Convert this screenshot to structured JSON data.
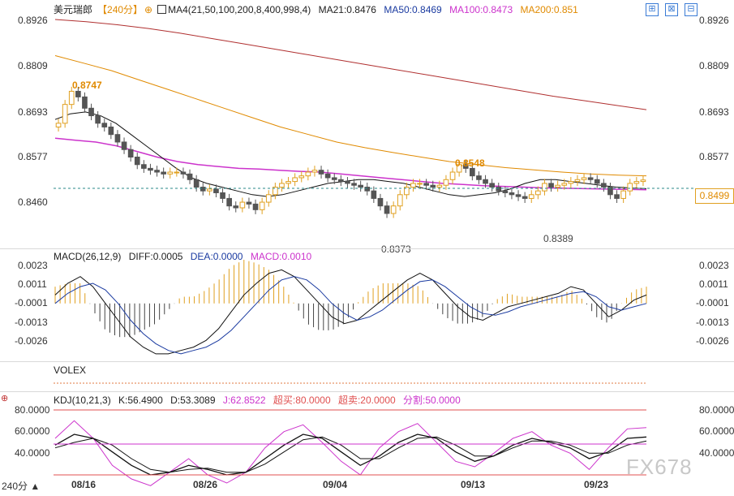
{
  "header": {
    "symbol": "美元瑞郎",
    "timeframe_tag": "【240分】",
    "ma_params": "MA4(21,50,100,200,8,400,998,4)",
    "ma21": "MA21:0.8476",
    "ma50": "MA50:0.8469",
    "ma100": "MA100:0.8473",
    "ma200": "MA200:0.851"
  },
  "window_buttons": [
    "⊞",
    "⊠",
    "⊟"
  ],
  "price_axis": [
    "0.8926",
    "0.8809",
    "0.8693",
    "0.8577",
    "0.8460"
  ],
  "price_axis_right": [
    "0.8926",
    "0.8809",
    "0.8693",
    "0.8577"
  ],
  "current_price": "0.8499",
  "annotations": {
    "high1": "0.8747",
    "high2": "0.8548",
    "low1": "0.8373",
    "low2": "0.8389"
  },
  "macd": {
    "label": "MACD(26,12,9)",
    "diff": "DIFF:0.0005",
    "dea": "DEA:0.0000",
    "macd": "MACD:0.0010",
    "axis": [
      "0.0023",
      "0.0011",
      "-0.0001",
      "-0.0013",
      "-0.0026"
    ]
  },
  "volex": {
    "label": "VOLEX"
  },
  "kdj": {
    "label": "KDJ(10,21,3)",
    "k": "K:56.4900",
    "d": "D:53.3089",
    "j": "J:62.8522",
    "overbought": "超买:80.0000",
    "oversold": "超卖:20.0000",
    "divider": "分割:50.0000",
    "axis": [
      "80.0000",
      "60.0000",
      "40.0000"
    ]
  },
  "time_axis": {
    "timeframe": "240分 ▲",
    "dates": [
      "08/16",
      "08/26",
      "09/04",
      "09/13",
      "09/23"
    ]
  },
  "watermark": "FX678",
  "colors": {
    "ma21": "#111111",
    "ma50": "#1a3aa0",
    "ma100": "#cc33cc",
    "ma200": "#e08a00",
    "long_ma": "#b03030",
    "up": "#e0a020",
    "down": "#555555",
    "kdj_k": "#111111",
    "kdj_d": "#111111",
    "kdj_j": "#cc33cc"
  },
  "chart_data": {
    "type": "line",
    "title": "美元瑞郎 240分",
    "price_range": [
      0.833,
      0.8926
    ],
    "closes": [
      0.865,
      0.87,
      0.8735,
      0.872,
      0.869,
      0.867,
      0.865,
      0.864,
      0.862,
      0.86,
      0.858,
      0.856,
      0.854,
      0.853,
      0.8525,
      0.852,
      0.8515,
      0.852,
      0.852,
      0.8515,
      0.85,
      0.848,
      0.847,
      0.8475,
      0.8465,
      0.845,
      0.843,
      0.8425,
      0.844,
      0.8435,
      0.842,
      0.844,
      0.846,
      0.848,
      0.849,
      0.8495,
      0.8505,
      0.851,
      0.852,
      0.8525,
      0.8515,
      0.8505,
      0.85,
      0.8495,
      0.849,
      0.8485,
      0.848,
      0.847,
      0.845,
      0.843,
      0.841,
      0.843,
      0.846,
      0.848,
      0.849,
      0.849,
      0.8485,
      0.848,
      0.8485,
      0.85,
      0.852,
      0.854,
      0.853,
      0.851,
      0.85,
      0.849,
      0.848,
      0.847,
      0.8465,
      0.846,
      0.8455,
      0.845,
      0.846,
      0.847,
      0.849,
      0.848,
      0.8485,
      0.849,
      0.8495,
      0.85,
      0.8505,
      0.85,
      0.849,
      0.848,
      0.846,
      0.845,
      0.847,
      0.849,
      0.8495,
      0.8499
    ],
    "series": [
      {
        "name": "MA21",
        "values": [
          0.866,
          0.8675,
          0.868,
          0.867,
          0.865,
          0.862,
          0.859,
          0.856,
          0.853,
          0.8505,
          0.849,
          0.848,
          0.847,
          0.846,
          0.8455,
          0.846,
          0.847,
          0.848,
          0.849,
          0.8495,
          0.85,
          0.85,
          0.8495,
          0.849,
          0.848,
          0.847,
          0.846,
          0.8455,
          0.846,
          0.8465,
          0.8475,
          0.849,
          0.85,
          0.85,
          0.8495,
          0.849,
          0.8485,
          0.848,
          0.8478,
          0.8476
        ]
      },
      {
        "name": "MA100",
        "values": [
          0.861,
          0.8605,
          0.86,
          0.859,
          0.8575,
          0.856,
          0.8548,
          0.854,
          0.8535,
          0.853,
          0.8528,
          0.8525,
          0.8522,
          0.852,
          0.8515,
          0.851,
          0.8505,
          0.85,
          0.8495,
          0.849,
          0.8487,
          0.8484,
          0.8482,
          0.848,
          0.8478,
          0.8477,
          0.8476,
          0.8475,
          0.8474,
          0.8473
        ]
      },
      {
        "name": "MA200",
        "values": [
          0.883,
          0.881,
          0.879,
          0.8765,
          0.874,
          0.8715,
          0.869,
          0.8665,
          0.864,
          0.862,
          0.86,
          0.8585,
          0.8572,
          0.856,
          0.8548,
          0.854,
          0.8532,
          0.8526,
          0.852,
          0.8515,
          0.8512,
          0.851
        ]
      },
      {
        "name": "MA998",
        "values": [
          0.8926,
          0.892,
          0.8912,
          0.8902,
          0.889,
          0.8876,
          0.8862,
          0.8848,
          0.8834,
          0.882,
          0.8806,
          0.8792,
          0.8778,
          0.8764,
          0.875,
          0.8736,
          0.8722,
          0.871,
          0.8698,
          0.8686
        ]
      }
    ],
    "macd_diff": [
      0.0005,
      0.0012,
      0.0016,
      0.001,
      0.0,
      -0.001,
      -0.002,
      -0.0026,
      -0.003,
      -0.003,
      -0.0028,
      -0.0026,
      -0.0022,
      -0.0015,
      -0.0005,
      0.0005,
      0.0012,
      0.0018,
      0.002,
      0.0016,
      0.0008,
      0.0,
      -0.0008,
      -0.0012,
      -0.001,
      -0.0004,
      0.0002,
      0.0008,
      0.0014,
      0.0018,
      0.0014,
      0.0006,
      -0.0002,
      -0.0008,
      -0.001,
      -0.0006,
      -0.0002,
      0.0,
      0.0002,
      0.0004,
      0.0006,
      0.001,
      0.0008,
      0.0,
      -0.0008,
      -0.0004,
      0.0002,
      0.0005
    ],
    "macd_dea": [
      0.0,
      0.0006,
      0.001,
      0.0012,
      0.0008,
      0.0,
      -0.001,
      -0.0018,
      -0.0024,
      -0.0028,
      -0.003,
      -0.0028,
      -0.0026,
      -0.0022,
      -0.0016,
      -0.0008,
      0.0,
      0.0008,
      0.0014,
      0.0016,
      0.0014,
      0.0008,
      0.0,
      -0.0006,
      -0.001,
      -0.0008,
      -0.0004,
      0.0002,
      0.0008,
      0.0013,
      0.0014,
      0.001,
      0.0004,
      -0.0002,
      -0.0006,
      -0.0007,
      -0.0005,
      -0.0002,
      0.0,
      0.0002,
      0.0004,
      0.0006,
      0.0007,
      0.0004,
      -0.0002,
      -0.0004,
      -0.0002,
      0.0
    ],
    "macd_range": [
      -0.0032,
      0.0026
    ],
    "kdj_k": [
      50,
      58,
      55,
      45,
      35,
      28,
      30,
      35,
      32,
      28,
      30,
      40,
      50,
      58,
      55,
      45,
      35,
      42,
      52,
      58,
      55,
      45,
      38,
      42,
      50,
      55,
      52,
      48,
      40,
      45,
      55,
      56
    ],
    "kdj_d": [
      48,
      52,
      55,
      50,
      40,
      32,
      30,
      32,
      33,
      30,
      30,
      36,
      45,
      54,
      56,
      50,
      40,
      40,
      48,
      55,
      56,
      50,
      42,
      42,
      48,
      53,
      53,
      50,
      44,
      44,
      50,
      53
    ],
    "kdj_j": [
      55,
      68,
      55,
      35,
      25,
      20,
      30,
      40,
      28,
      22,
      30,
      48,
      60,
      65,
      52,
      38,
      28,
      48,
      60,
      66,
      52,
      38,
      34,
      44,
      55,
      60,
      50,
      44,
      32,
      48,
      62,
      63
    ],
    "kdj_range": [
      25,
      85
    ]
  }
}
